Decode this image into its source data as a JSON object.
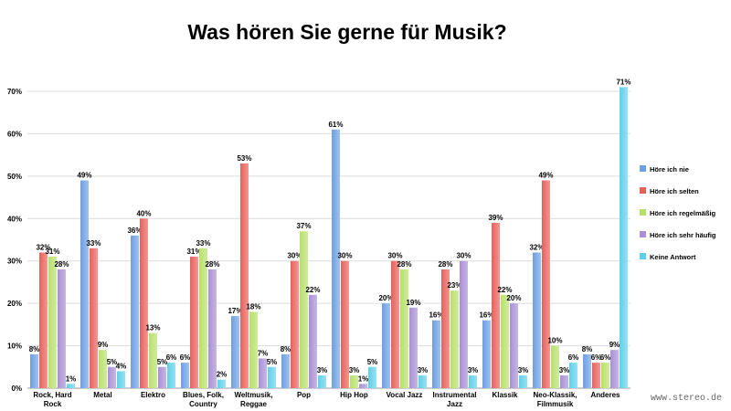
{
  "chart_data": {
    "type": "bar",
    "title": "Was hören Sie gerne für Musik?",
    "xlabel": "",
    "ylabel": "",
    "ylim": [
      0,
      70
    ],
    "yticks": [
      "0%",
      "10%",
      "20%",
      "30%",
      "40%",
      "50%",
      "60%",
      "70%"
    ],
    "grid": true,
    "legend_position": "right",
    "categories": [
      [
        "Rock, Hard",
        "Rock"
      ],
      [
        "Metal"
      ],
      [
        "Elektro"
      ],
      [
        "Blues, Folk,",
        "Country"
      ],
      [
        "Weltmusik,",
        "Reggae"
      ],
      [
        "Pop"
      ],
      [
        "Hip Hop"
      ],
      [
        "Vocal Jazz"
      ],
      [
        "Instrumental",
        "Jazz"
      ],
      [
        "Klassik"
      ],
      [
        "Neo-Klassik,",
        "Filmmusik"
      ],
      [
        "Anderes"
      ]
    ],
    "series": [
      {
        "name": "Höre ich nie",
        "color": "#6e9fe3",
        "values": [
          8,
          49,
          36,
          6,
          17,
          8,
          61,
          20,
          16,
          16,
          32,
          8
        ]
      },
      {
        "name": "Höre ich selten",
        "color": "#e8605a",
        "values": [
          32,
          33,
          40,
          31,
          53,
          30,
          30,
          30,
          28,
          39,
          49,
          6
        ]
      },
      {
        "name": "Höre ich regelmäßig",
        "color": "#b7e06a",
        "values": [
          31,
          9,
          13,
          33,
          18,
          37,
          3,
          28,
          23,
          22,
          10,
          6
        ]
      },
      {
        "name": "Höre ich sehr häufig",
        "color": "#a88fd6",
        "values": [
          28,
          5,
          5,
          28,
          7,
          22,
          1,
          19,
          30,
          20,
          3,
          9
        ]
      },
      {
        "name": "Keine Antwort",
        "color": "#5fd0ea",
        "values": [
          1,
          4,
          6,
          2,
          5,
          3,
          5,
          3,
          3,
          3,
          6,
          71
        ]
      }
    ]
  },
  "watermark": "www.stereo.de"
}
